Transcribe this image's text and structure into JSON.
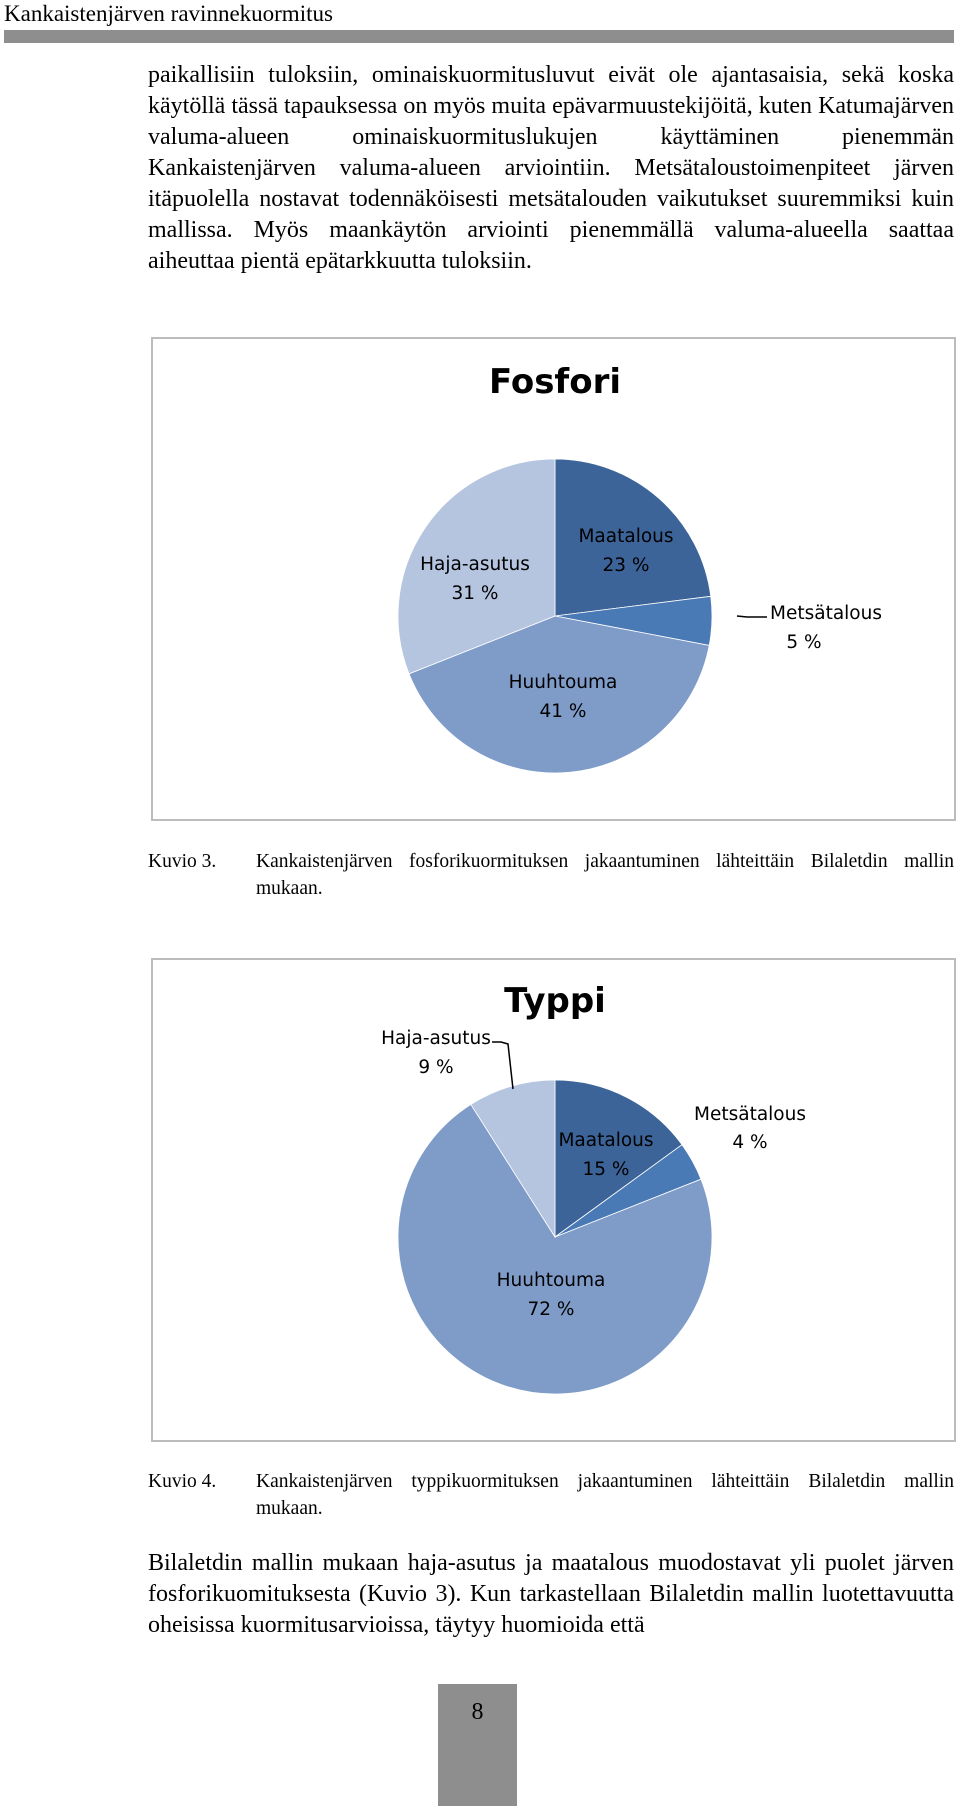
{
  "header": {
    "title": "Kankaistenjärven ravinnekuormitus"
  },
  "paragraphs": {
    "intro": "paikallisiin tuloksiin, ominaiskuormitusluvut eivät ole ajantasaisia, sekä koska käytöllä tässä tapauksessa on myös muita epävarmuustekijöitä, kuten Katumajärven valuma-alueen ominaiskuormituslukujen käyttäminen pienemmän Kankaistenjärven valuma-alueen arviointiin. Metsätaloustoimenpiteet järven itäpuolella nostavat todennäköisesti metsätalouden vaikutukset suuremmiksi kuin mallissa. Myös maankäytön arviointi pienemmällä valuma-alueella saattaa aiheuttaa pientä epätarkkuutta tuloksiin.",
    "conclusion": "Bilaletdin mallin mukaan haja-asutus ja maatalous muodostavat yli puolet järven fosforikuomituksesta (Kuvio 3). Kun tarkastellaan Bilaletdin mallin luotettavuutta oheisissa kuormitusarvioissa, täytyy huomioida että"
  },
  "captions": {
    "fig3": {
      "label": "Kuvio 3.",
      "text": "Kankaistenjärven fosforikuormituksen jakaantuminen lähteittäin Bilaletdin mallin mukaan."
    },
    "fig4": {
      "label": "Kuvio 4.",
      "text": "Kankaistenjärven typpikuormituksen jakaantuminen lähteittäin Bilaletdin mallin mukaan."
    }
  },
  "page_number": "8",
  "chart_data": [
    {
      "type": "pie",
      "title": "Fosfori",
      "categories": [
        "Maatalous",
        "Metsätalous",
        "Huuhtouma",
        "Haja-asutus"
      ],
      "values": [
        23,
        5,
        41,
        31
      ],
      "labels": [
        "23 %",
        "5 %",
        "41 %",
        "31 %"
      ],
      "colors": [
        "#3c6498",
        "#4a7ab5",
        "#7f9cc9",
        "#b5c4df"
      ]
    },
    {
      "type": "pie",
      "title": "Typpi",
      "categories": [
        "Maatalous",
        "Metsätalous",
        "Huuhtouma",
        "Haja-asutus"
      ],
      "values": [
        15,
        4,
        72,
        9
      ],
      "labels": [
        "15 %",
        "4 %",
        "72 %",
        "9 %"
      ],
      "colors": [
        "#3c6498",
        "#4a7ab5",
        "#7f9cc9",
        "#b5c4df"
      ]
    }
  ]
}
